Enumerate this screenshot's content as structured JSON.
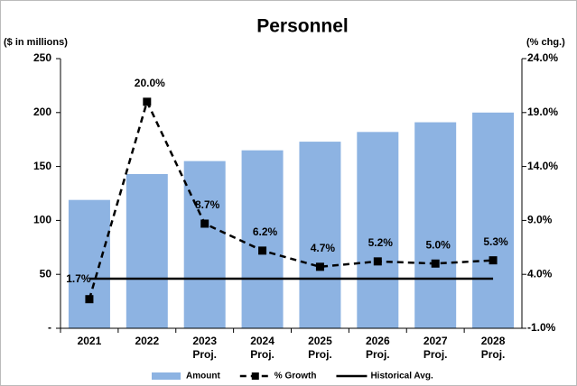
{
  "chart_data": {
    "type": "bar",
    "title": "Personnel",
    "y_label": "($ in millions)",
    "y2_label": "(% chg.)",
    "categories": [
      "2021",
      "2022",
      "2023 Proj.",
      "2024 Proj.",
      "2025 Proj.",
      "2026 Proj.",
      "2027 Proj.",
      "2028 Proj."
    ],
    "series": [
      {
        "name": "Amount",
        "type": "bar",
        "color": "#8DB3E2",
        "values": [
          119,
          143,
          155,
          165,
          173,
          182,
          191,
          200
        ]
      },
      {
        "name": "% Growth",
        "type": "line",
        "axis": "y2",
        "color": "#000000",
        "dashed": true,
        "marker": "square",
        "values": [
          1.7,
          20.0,
          8.7,
          6.2,
          4.7,
          5.2,
          5.0,
          5.3
        ],
        "value_labels": [
          "1.7%",
          "20.0%",
          "8.7%",
          "6.2%",
          "4.7%",
          "5.2%",
          "5.0%",
          "5.3%"
        ]
      },
      {
        "name": "Historical Avg.",
        "type": "line",
        "axis": "y2",
        "color": "#000000",
        "dashed": false,
        "values": [
          3.6,
          3.6,
          3.6,
          3.6,
          3.6,
          3.6,
          3.6,
          3.6
        ]
      }
    ],
    "ylim": [
      0,
      250
    ],
    "yticks": [
      {
        "value": 0,
        "label": "-"
      },
      50,
      100,
      150,
      200,
      250
    ],
    "y2lim": [
      -1,
      24
    ],
    "y2ticks": [
      {
        "value": -1,
        "label": "-1.0%"
      },
      {
        "value": 4,
        "label": "4.0%"
      },
      {
        "value": 9,
        "label": "9.0%"
      },
      {
        "value": 14,
        "label": "14.0%"
      },
      {
        "value": 19,
        "label": "19.0%"
      },
      {
        "value": 24,
        "label": "24.0%"
      }
    ],
    "grid": false,
    "legend": "bottom"
  }
}
